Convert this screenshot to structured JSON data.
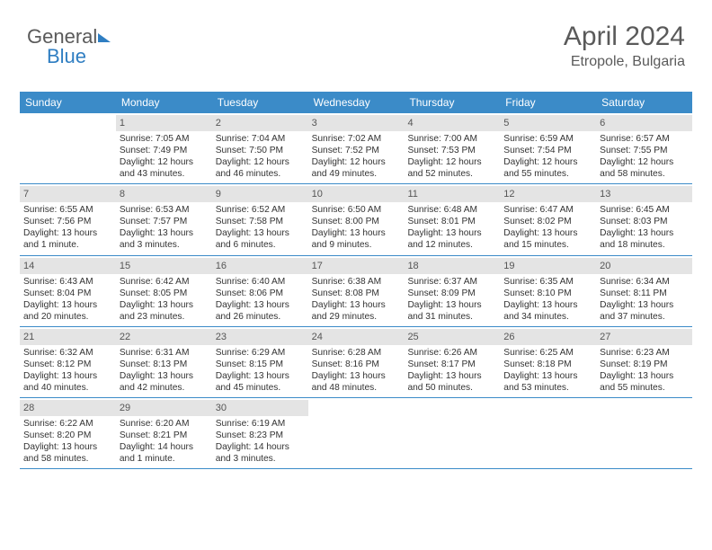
{
  "logo": {
    "word1": "General",
    "word2": "Blue"
  },
  "header": {
    "month": "April 2024",
    "location": "Etropole, Bulgaria"
  },
  "colors": {
    "brand_blue": "#3b8bc8",
    "text_gray": "#5a5a5a",
    "daybar": "#e4e4e4"
  },
  "dow": [
    "Sunday",
    "Monday",
    "Tuesday",
    "Wednesday",
    "Thursday",
    "Friday",
    "Saturday"
  ],
  "weeks": [
    [
      {
        "n": "",
        "sr": "",
        "ss": "",
        "dl": ""
      },
      {
        "n": "1",
        "sr": "Sunrise: 7:05 AM",
        "ss": "Sunset: 7:49 PM",
        "dl": "Daylight: 12 hours and 43 minutes."
      },
      {
        "n": "2",
        "sr": "Sunrise: 7:04 AM",
        "ss": "Sunset: 7:50 PM",
        "dl": "Daylight: 12 hours and 46 minutes."
      },
      {
        "n": "3",
        "sr": "Sunrise: 7:02 AM",
        "ss": "Sunset: 7:52 PM",
        "dl": "Daylight: 12 hours and 49 minutes."
      },
      {
        "n": "4",
        "sr": "Sunrise: 7:00 AM",
        "ss": "Sunset: 7:53 PM",
        "dl": "Daylight: 12 hours and 52 minutes."
      },
      {
        "n": "5",
        "sr": "Sunrise: 6:59 AM",
        "ss": "Sunset: 7:54 PM",
        "dl": "Daylight: 12 hours and 55 minutes."
      },
      {
        "n": "6",
        "sr": "Sunrise: 6:57 AM",
        "ss": "Sunset: 7:55 PM",
        "dl": "Daylight: 12 hours and 58 minutes."
      }
    ],
    [
      {
        "n": "7",
        "sr": "Sunrise: 6:55 AM",
        "ss": "Sunset: 7:56 PM",
        "dl": "Daylight: 13 hours and 1 minute."
      },
      {
        "n": "8",
        "sr": "Sunrise: 6:53 AM",
        "ss": "Sunset: 7:57 PM",
        "dl": "Daylight: 13 hours and 3 minutes."
      },
      {
        "n": "9",
        "sr": "Sunrise: 6:52 AM",
        "ss": "Sunset: 7:58 PM",
        "dl": "Daylight: 13 hours and 6 minutes."
      },
      {
        "n": "10",
        "sr": "Sunrise: 6:50 AM",
        "ss": "Sunset: 8:00 PM",
        "dl": "Daylight: 13 hours and 9 minutes."
      },
      {
        "n": "11",
        "sr": "Sunrise: 6:48 AM",
        "ss": "Sunset: 8:01 PM",
        "dl": "Daylight: 13 hours and 12 minutes."
      },
      {
        "n": "12",
        "sr": "Sunrise: 6:47 AM",
        "ss": "Sunset: 8:02 PM",
        "dl": "Daylight: 13 hours and 15 minutes."
      },
      {
        "n": "13",
        "sr": "Sunrise: 6:45 AM",
        "ss": "Sunset: 8:03 PM",
        "dl": "Daylight: 13 hours and 18 minutes."
      }
    ],
    [
      {
        "n": "14",
        "sr": "Sunrise: 6:43 AM",
        "ss": "Sunset: 8:04 PM",
        "dl": "Daylight: 13 hours and 20 minutes."
      },
      {
        "n": "15",
        "sr": "Sunrise: 6:42 AM",
        "ss": "Sunset: 8:05 PM",
        "dl": "Daylight: 13 hours and 23 minutes."
      },
      {
        "n": "16",
        "sr": "Sunrise: 6:40 AM",
        "ss": "Sunset: 8:06 PM",
        "dl": "Daylight: 13 hours and 26 minutes."
      },
      {
        "n": "17",
        "sr": "Sunrise: 6:38 AM",
        "ss": "Sunset: 8:08 PM",
        "dl": "Daylight: 13 hours and 29 minutes."
      },
      {
        "n": "18",
        "sr": "Sunrise: 6:37 AM",
        "ss": "Sunset: 8:09 PM",
        "dl": "Daylight: 13 hours and 31 minutes."
      },
      {
        "n": "19",
        "sr": "Sunrise: 6:35 AM",
        "ss": "Sunset: 8:10 PM",
        "dl": "Daylight: 13 hours and 34 minutes."
      },
      {
        "n": "20",
        "sr": "Sunrise: 6:34 AM",
        "ss": "Sunset: 8:11 PM",
        "dl": "Daylight: 13 hours and 37 minutes."
      }
    ],
    [
      {
        "n": "21",
        "sr": "Sunrise: 6:32 AM",
        "ss": "Sunset: 8:12 PM",
        "dl": "Daylight: 13 hours and 40 minutes."
      },
      {
        "n": "22",
        "sr": "Sunrise: 6:31 AM",
        "ss": "Sunset: 8:13 PM",
        "dl": "Daylight: 13 hours and 42 minutes."
      },
      {
        "n": "23",
        "sr": "Sunrise: 6:29 AM",
        "ss": "Sunset: 8:15 PM",
        "dl": "Daylight: 13 hours and 45 minutes."
      },
      {
        "n": "24",
        "sr": "Sunrise: 6:28 AM",
        "ss": "Sunset: 8:16 PM",
        "dl": "Daylight: 13 hours and 48 minutes."
      },
      {
        "n": "25",
        "sr": "Sunrise: 6:26 AM",
        "ss": "Sunset: 8:17 PM",
        "dl": "Daylight: 13 hours and 50 minutes."
      },
      {
        "n": "26",
        "sr": "Sunrise: 6:25 AM",
        "ss": "Sunset: 8:18 PM",
        "dl": "Daylight: 13 hours and 53 minutes."
      },
      {
        "n": "27",
        "sr": "Sunrise: 6:23 AM",
        "ss": "Sunset: 8:19 PM",
        "dl": "Daylight: 13 hours and 55 minutes."
      }
    ],
    [
      {
        "n": "28",
        "sr": "Sunrise: 6:22 AM",
        "ss": "Sunset: 8:20 PM",
        "dl": "Daylight: 13 hours and 58 minutes."
      },
      {
        "n": "29",
        "sr": "Sunrise: 6:20 AM",
        "ss": "Sunset: 8:21 PM",
        "dl": "Daylight: 14 hours and 1 minute."
      },
      {
        "n": "30",
        "sr": "Sunrise: 6:19 AM",
        "ss": "Sunset: 8:23 PM",
        "dl": "Daylight: 14 hours and 3 minutes."
      },
      {
        "n": "",
        "sr": "",
        "ss": "",
        "dl": ""
      },
      {
        "n": "",
        "sr": "",
        "ss": "",
        "dl": ""
      },
      {
        "n": "",
        "sr": "",
        "ss": "",
        "dl": ""
      },
      {
        "n": "",
        "sr": "",
        "ss": "",
        "dl": ""
      }
    ]
  ]
}
